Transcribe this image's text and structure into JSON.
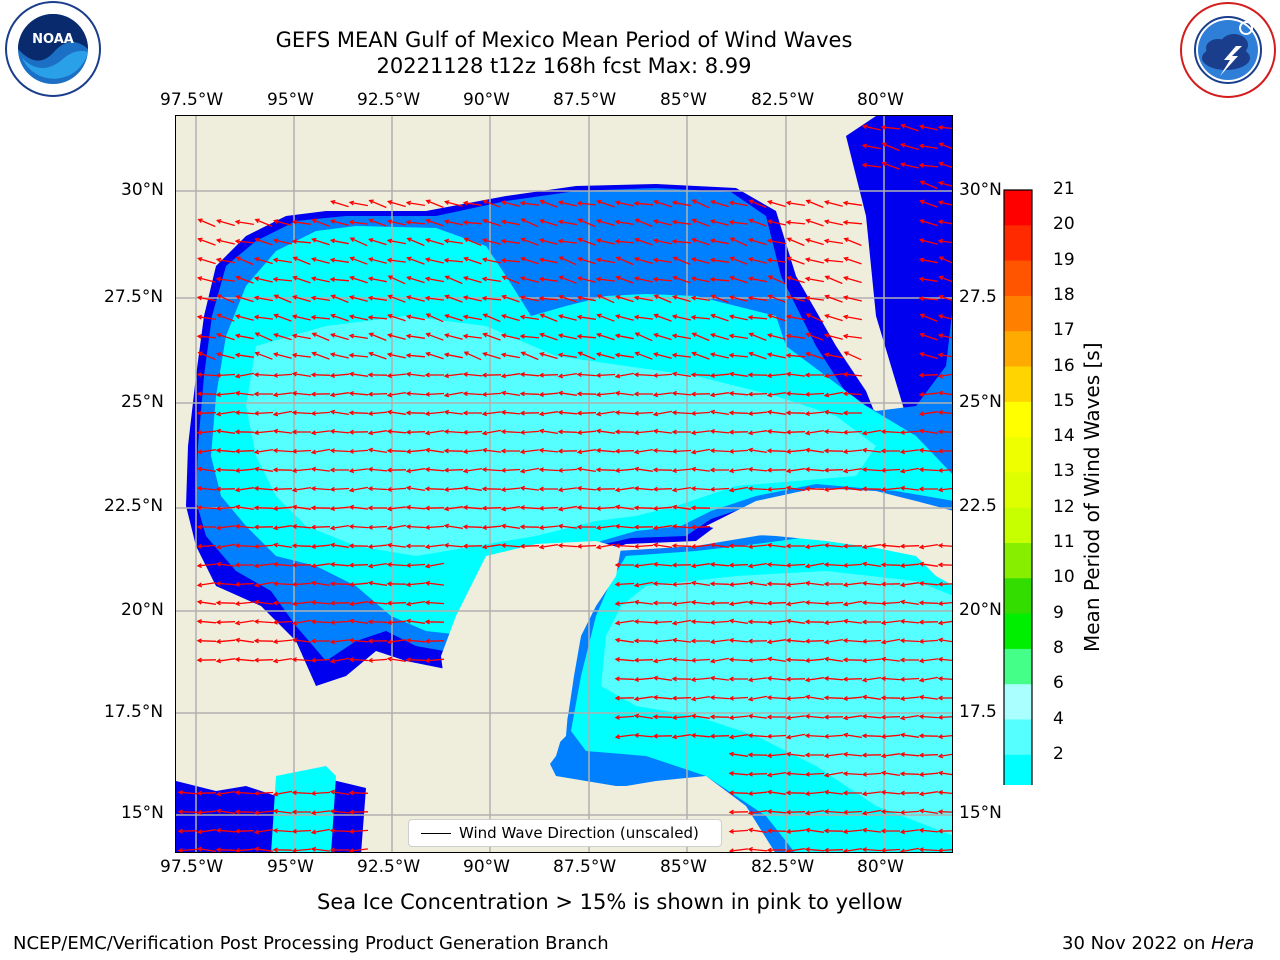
{
  "title_line1": "GEFS MEAN Gulf of Mexico Mean Period of Wind Waves",
  "title_line2": "20221128 t12z 168h fcst   Max: 8.99",
  "lon_labels": [
    "97.5°W",
    "95°W",
    "92.5°W",
    "90°W",
    "87.5°W",
    "85°W",
    "82.5°W",
    "80°W"
  ],
  "lat_labels": [
    "30°N",
    "27.5°N",
    "25°N",
    "22.5°N",
    "20°N",
    "17.5°N",
    "15°N"
  ],
  "lat_labels_right": [
    "30°N",
    "27.5",
    "25°N",
    "22.5",
    "20°N",
    "17.5",
    "15°N"
  ],
  "legend_text": "Wind Wave Direction (unscaled)",
  "colorbar_label": "Mean Period of Wind Waves [s]",
  "colorbar_ticks": [
    "21",
    "20",
    "19",
    "18",
    "17",
    "16",
    "15",
    "14",
    "13",
    "12",
    "11",
    "10",
    "9",
    "8",
    "6",
    "4",
    "2"
  ],
  "colorbar_colors": [
    "#ff0000",
    "#ff2a00",
    "#ff5500",
    "#ff7f00",
    "#ffaa00",
    "#ffd400",
    "#ffff00",
    "#eeff00",
    "#ddff00",
    "#c7ff00",
    "#88ee00",
    "#33dd00",
    "#00ee00",
    "#44ff88",
    "#aaffff",
    "#55ffff",
    "#00ffff",
    "#0080ff"
  ],
  "caption": "Sea Ice Concentration > 15% is shown in pink to yellow",
  "footer_left": "NCEP/EMC/Verification Post Processing Product Generation Branch",
  "footer_right_prefix": "30 Nov 2022 on ",
  "footer_right_machine": "Hera",
  "noaa_logo_text": "NOAA",
  "nws_logo_text": "NATIONAL WEATHER SERVICE",
  "colors": {
    "land": "#efeddc",
    "ocean_dark": "#0000ee",
    "ocean_blue": "#0080ff",
    "ocean_cyan": "#00ffff",
    "ocean_light": "#55ffff",
    "arrow": "#ff0000",
    "grid": "#b0b0b0"
  },
  "map_data": {
    "lon_range": [
      -98.5,
      -78.75
    ],
    "lat_range": [
      14.1,
      31.75
    ],
    "max_period": 8.99,
    "arrow_direction": "predominantly westward to north-westward"
  }
}
